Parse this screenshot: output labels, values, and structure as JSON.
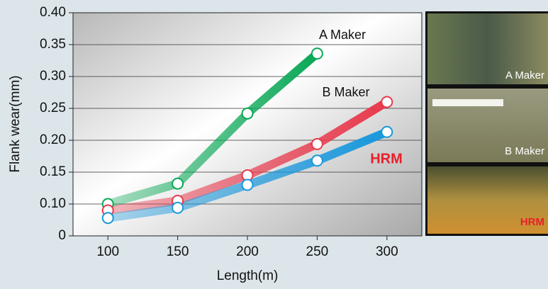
{
  "chart_data": {
    "type": "line",
    "y_label": "Flank wear(mm)",
    "x_label": "Length(m)",
    "x": [
      100,
      150,
      200,
      250,
      300
    ],
    "series": [
      {
        "name": "A Maker",
        "color": "#0aa857",
        "values": [
          0.1,
          0.132,
          0.242,
          0.336,
          null
        ]
      },
      {
        "name": "B Maker",
        "color": "#e83a4c",
        "values": [
          0.09,
          0.105,
          0.145,
          0.194,
          0.26
        ]
      },
      {
        "name": "HRM",
        "color": "#1898dc",
        "values": [
          0.078,
          0.094,
          0.13,
          0.168,
          0.213
        ]
      }
    ],
    "xlim": [
      75,
      325
    ],
    "xticks": [
      100,
      150,
      200,
      250,
      300
    ],
    "ylim": [
      0,
      0.4
    ],
    "y_axis_break": [
      0,
      0.05
    ],
    "yticks": [
      0,
      {
        "value": 0.1,
        "label": "0.10"
      },
      0.15,
      {
        "value": 0.2,
        "label": "0.20"
      },
      0.25,
      {
        "value": 0.3,
        "label": "0.30"
      },
      0.35,
      {
        "value": 0.4,
        "label": "0.40"
      }
    ],
    "grid": true,
    "photo_labels": [
      "A Maker",
      "B Maker",
      "HRM"
    ]
  }
}
